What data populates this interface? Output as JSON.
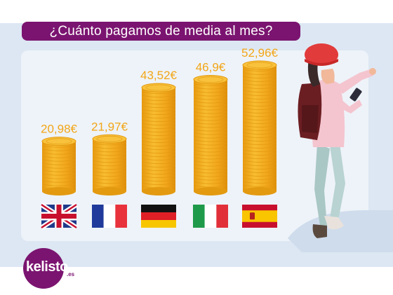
{
  "title": "¿Cuánto pagamos de media al mes?",
  "brand": {
    "name": "kelisto",
    "suffix": ".es"
  },
  "colors": {
    "title_bg": "#7b1470",
    "value_label": "#f2a618",
    "coin_face": "#f6b72a",
    "coin_edge": "#e39a10",
    "panel_bg": "#eef3f9",
    "band_bg": "#dde7f3"
  },
  "chart_data": {
    "type": "bar",
    "categories": [
      "Reino Unido",
      "Francia",
      "Alemania",
      "Italia",
      "España"
    ],
    "category_icons": [
      "uk-flag-icon",
      "france-flag-icon",
      "germany-flag-icon",
      "italy-flag-icon",
      "spain-flag-icon"
    ],
    "values": [
      20.98,
      21.97,
      43.52,
      46.9,
      52.96
    ],
    "value_labels": [
      "20,98€",
      "21,97€",
      "43,52€",
      "46,9€",
      "52,96€"
    ],
    "unit": "€",
    "title": "¿Cuánto pagamos de media al mes?",
    "xlabel": "",
    "ylabel": "",
    "ylim": [
      0,
      56
    ],
    "grid": false,
    "legend": "none"
  }
}
